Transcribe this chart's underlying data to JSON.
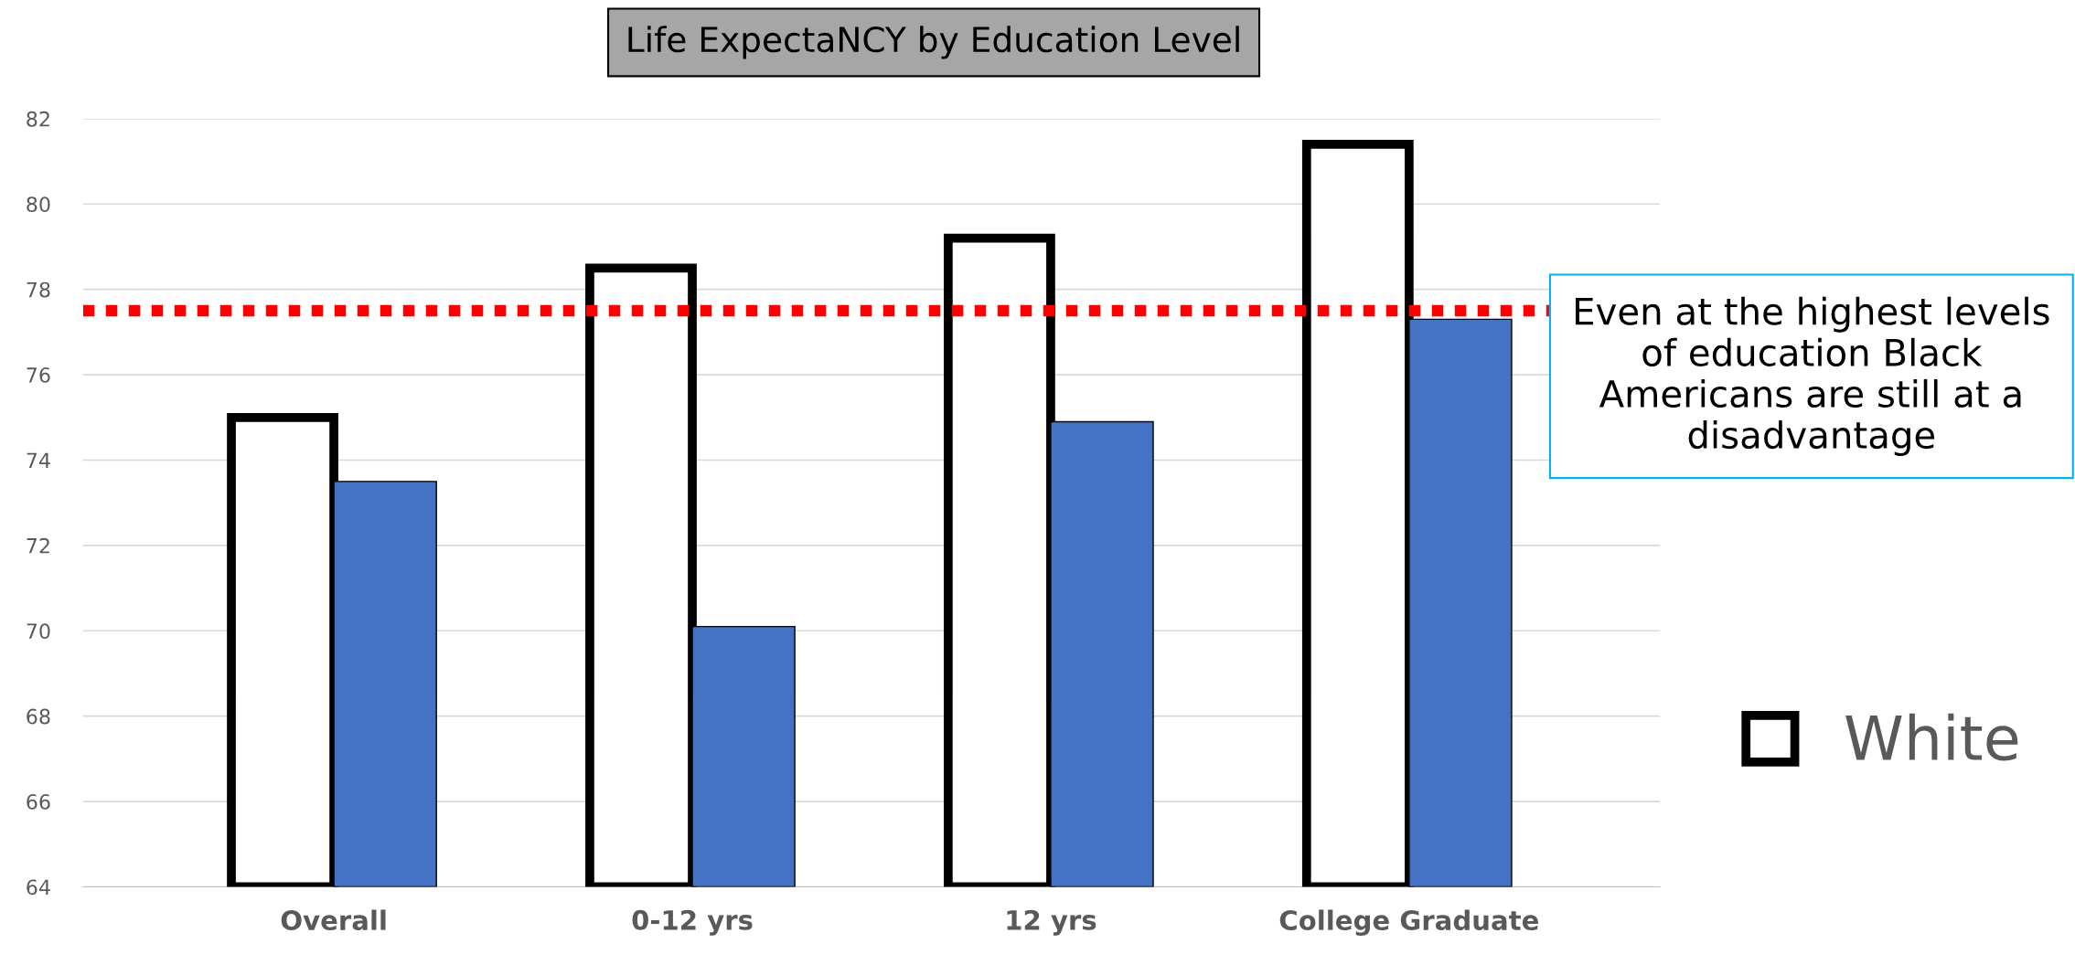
{
  "chart_data": {
    "type": "bar",
    "title": "Life ExpectaNCY by Education Level",
    "categories": [
      "Overall",
      "0-12 yrs",
      "12 yrs",
      "College Graduate"
    ],
    "series": [
      {
        "name": "White",
        "color": "#ffffff",
        "values": [
          75.0,
          78.5,
          79.2,
          81.4
        ]
      },
      {
        "color": "#4472c4",
        "values": [
          73.5,
          70.1,
          74.9,
          77.3
        ]
      }
    ],
    "ylim": [
      64,
      82
    ],
    "yticks": [
      64,
      66,
      68,
      70,
      72,
      74,
      76,
      78,
      80,
      82
    ],
    "grid": "y",
    "legend": "right",
    "ref_lines": [
      {
        "axis": "y",
        "value": 77.5,
        "color": "#ff0000",
        "line_style": "dotted"
      }
    ],
    "annotations": [
      "Even at the highest levels of education Black Americans are still at a disadvantage"
    ]
  }
}
